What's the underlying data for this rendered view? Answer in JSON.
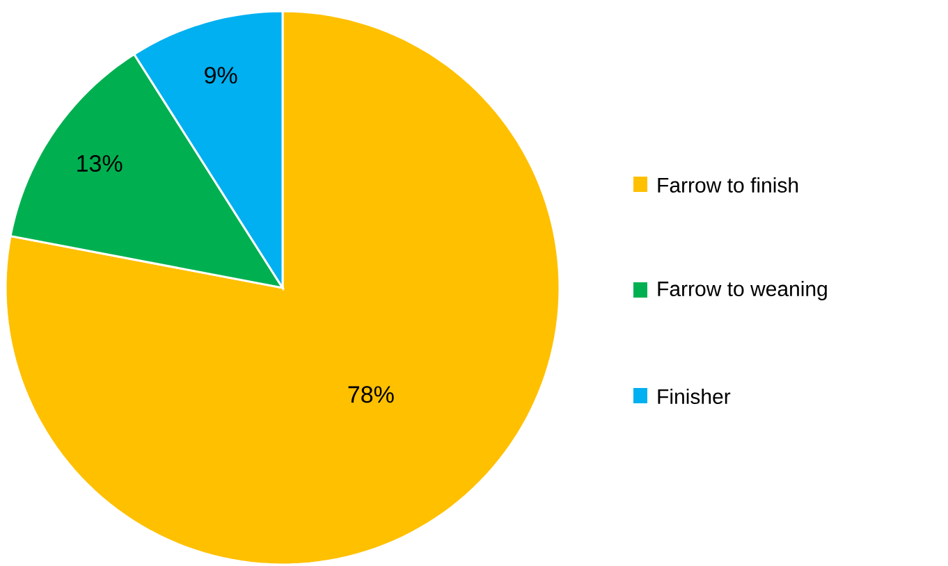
{
  "chart_data": {
    "type": "pie",
    "categories": [
      "Farrow to finish",
      "Farrow to weaning",
      "Finisher"
    ],
    "values": [
      78,
      13,
      9
    ],
    "colors": [
      "#ffc000",
      "#00b050",
      "#00b0f0"
    ],
    "value_labels": [
      "78%",
      "13%",
      "9%"
    ],
    "legend": "right"
  }
}
